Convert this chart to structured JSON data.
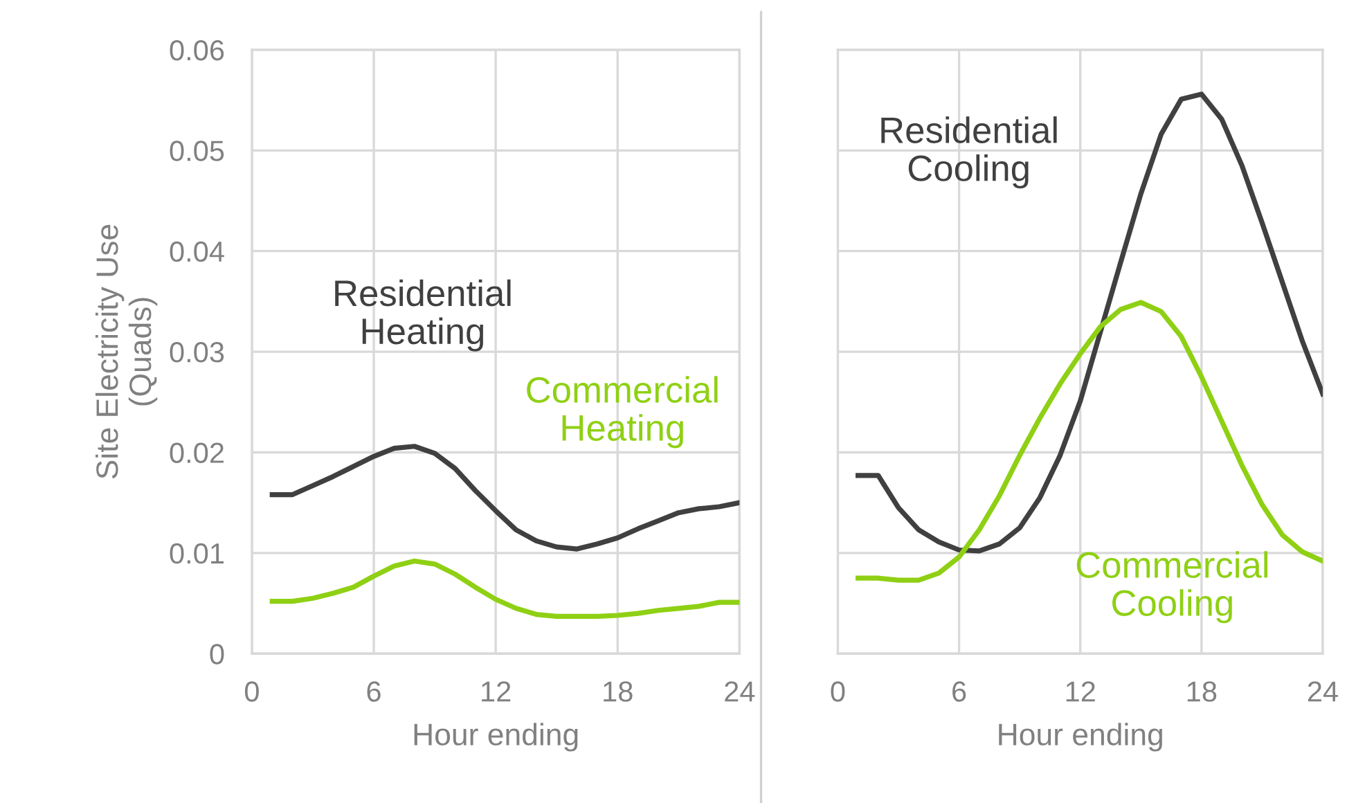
{
  "chart_data": [
    {
      "type": "line",
      "ylabel": "Site Electricity Use\n(Quads)",
      "xlabel": "Hour ending",
      "x": [
        1,
        2,
        3,
        4,
        5,
        6,
        7,
        8,
        9,
        10,
        11,
        12,
        13,
        14,
        15,
        16,
        17,
        18,
        19,
        20,
        21,
        22,
        23,
        24
      ],
      "xlim": [
        0,
        24
      ],
      "xticks": [
        0,
        6,
        12,
        18,
        24
      ],
      "ylim": [
        0,
        0.06
      ],
      "yticks": [
        0,
        0.01,
        0.02,
        0.03,
        0.04,
        0.05,
        0.06
      ],
      "grid": true,
      "legend": false,
      "marker": "none",
      "line_style": "solid",
      "series": [
        {
          "name": "Residential Heating",
          "color": "#404040",
          "values": [
            0.0158,
            0.0158,
            0.0167,
            0.0176,
            0.0186,
            0.0196,
            0.0204,
            0.0206,
            0.0199,
            0.0184,
            0.0162,
            0.0142,
            0.0123,
            0.0112,
            0.0106,
            0.0104,
            0.0109,
            0.0115,
            0.0124,
            0.0132,
            0.014,
            0.0144,
            0.0146,
            0.015
          ]
        },
        {
          "name": "Commercial Heating",
          "color": "#8fd014",
          "values": [
            0.0052,
            0.0052,
            0.0055,
            0.006,
            0.0066,
            0.0077,
            0.0087,
            0.0092,
            0.0089,
            0.0079,
            0.0066,
            0.0054,
            0.0045,
            0.0039,
            0.0037,
            0.0037,
            0.0037,
            0.0038,
            0.004,
            0.0043,
            0.0045,
            0.0047,
            0.0051,
            0.0051
          ]
        }
      ]
    },
    {
      "type": "line",
      "xlabel": "Hour ending",
      "x": [
        1,
        2,
        3,
        4,
        5,
        6,
        7,
        8,
        9,
        10,
        11,
        12,
        13,
        14,
        15,
        16,
        17,
        18,
        19,
        20,
        21,
        22,
        23,
        24
      ],
      "xlim": [
        0,
        24
      ],
      "xticks": [
        0,
        6,
        12,
        18,
        24
      ],
      "ylim": [
        0,
        0.06
      ],
      "yticks": [
        0,
        0.01,
        0.02,
        0.03,
        0.04,
        0.05,
        0.06
      ],
      "tick_labels": "x",
      "grid": true,
      "legend": false,
      "marker": "none",
      "line_style": "solid",
      "series": [
        {
          "name": "Residential Cooling",
          "color": "#404040",
          "values": [
            0.0177,
            0.0177,
            0.0145,
            0.0123,
            0.0111,
            0.0103,
            0.0102,
            0.0109,
            0.0125,
            0.0155,
            0.0197,
            0.0251,
            0.032,
            0.0389,
            0.0457,
            0.0516,
            0.0551,
            0.0556,
            0.0531,
            0.0485,
            0.0428,
            0.0369,
            0.031,
            0.0258
          ]
        },
        {
          "name": "Commercial Cooling",
          "color": "#8fd014",
          "values": [
            0.0075,
            0.0075,
            0.0073,
            0.0073,
            0.008,
            0.0096,
            0.0123,
            0.0157,
            0.0197,
            0.0234,
            0.0268,
            0.0298,
            0.0325,
            0.0342,
            0.0349,
            0.034,
            0.0315,
            0.0275,
            0.0231,
            0.0187,
            0.0148,
            0.0118,
            0.0101,
            0.0092
          ]
        }
      ]
    }
  ]
}
